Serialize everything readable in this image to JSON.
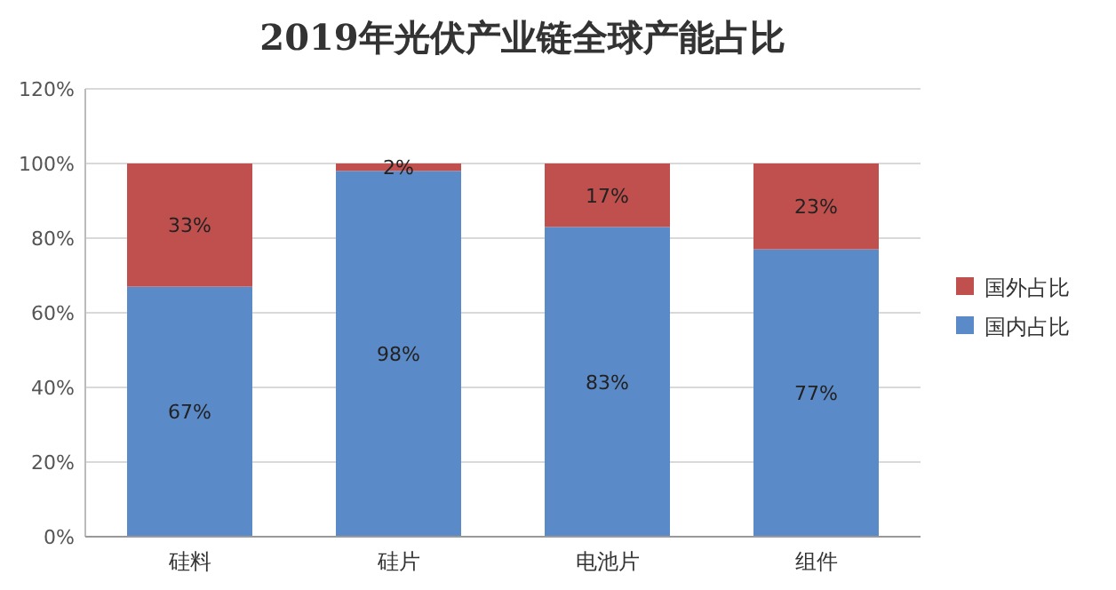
{
  "chart_data": {
    "type": "bar",
    "title": "2019年光伏产业链全球产能占比",
    "categories": [
      "硅料",
      "硅片",
      "电池片",
      "组件"
    ],
    "stacked": true,
    "series": [
      {
        "name": "国内占比",
        "color": "#5b8ac9",
        "values": [
          67,
          98,
          83,
          77
        ],
        "value_labels": [
          "67%",
          "98%",
          "83%",
          "77%"
        ]
      },
      {
        "name": "国外占比",
        "color": "#c0504d",
        "values": [
          33,
          2,
          17,
          23
        ],
        "value_labels": [
          "33%",
          "2%",
          "17%",
          "23%"
        ]
      }
    ],
    "ylim": [
      0,
      120
    ],
    "yticks": [
      {
        "value": 0,
        "label": "0%"
      },
      {
        "value": 20,
        "label": "20%"
      },
      {
        "value": 40,
        "label": "40%"
      },
      {
        "value": 60,
        "label": "60%"
      },
      {
        "value": 80,
        "label": "80%"
      },
      {
        "value": 100,
        "label": "100%"
      },
      {
        "value": 120,
        "label": "120%"
      }
    ],
    "grid": "y",
    "legend": "right"
  }
}
